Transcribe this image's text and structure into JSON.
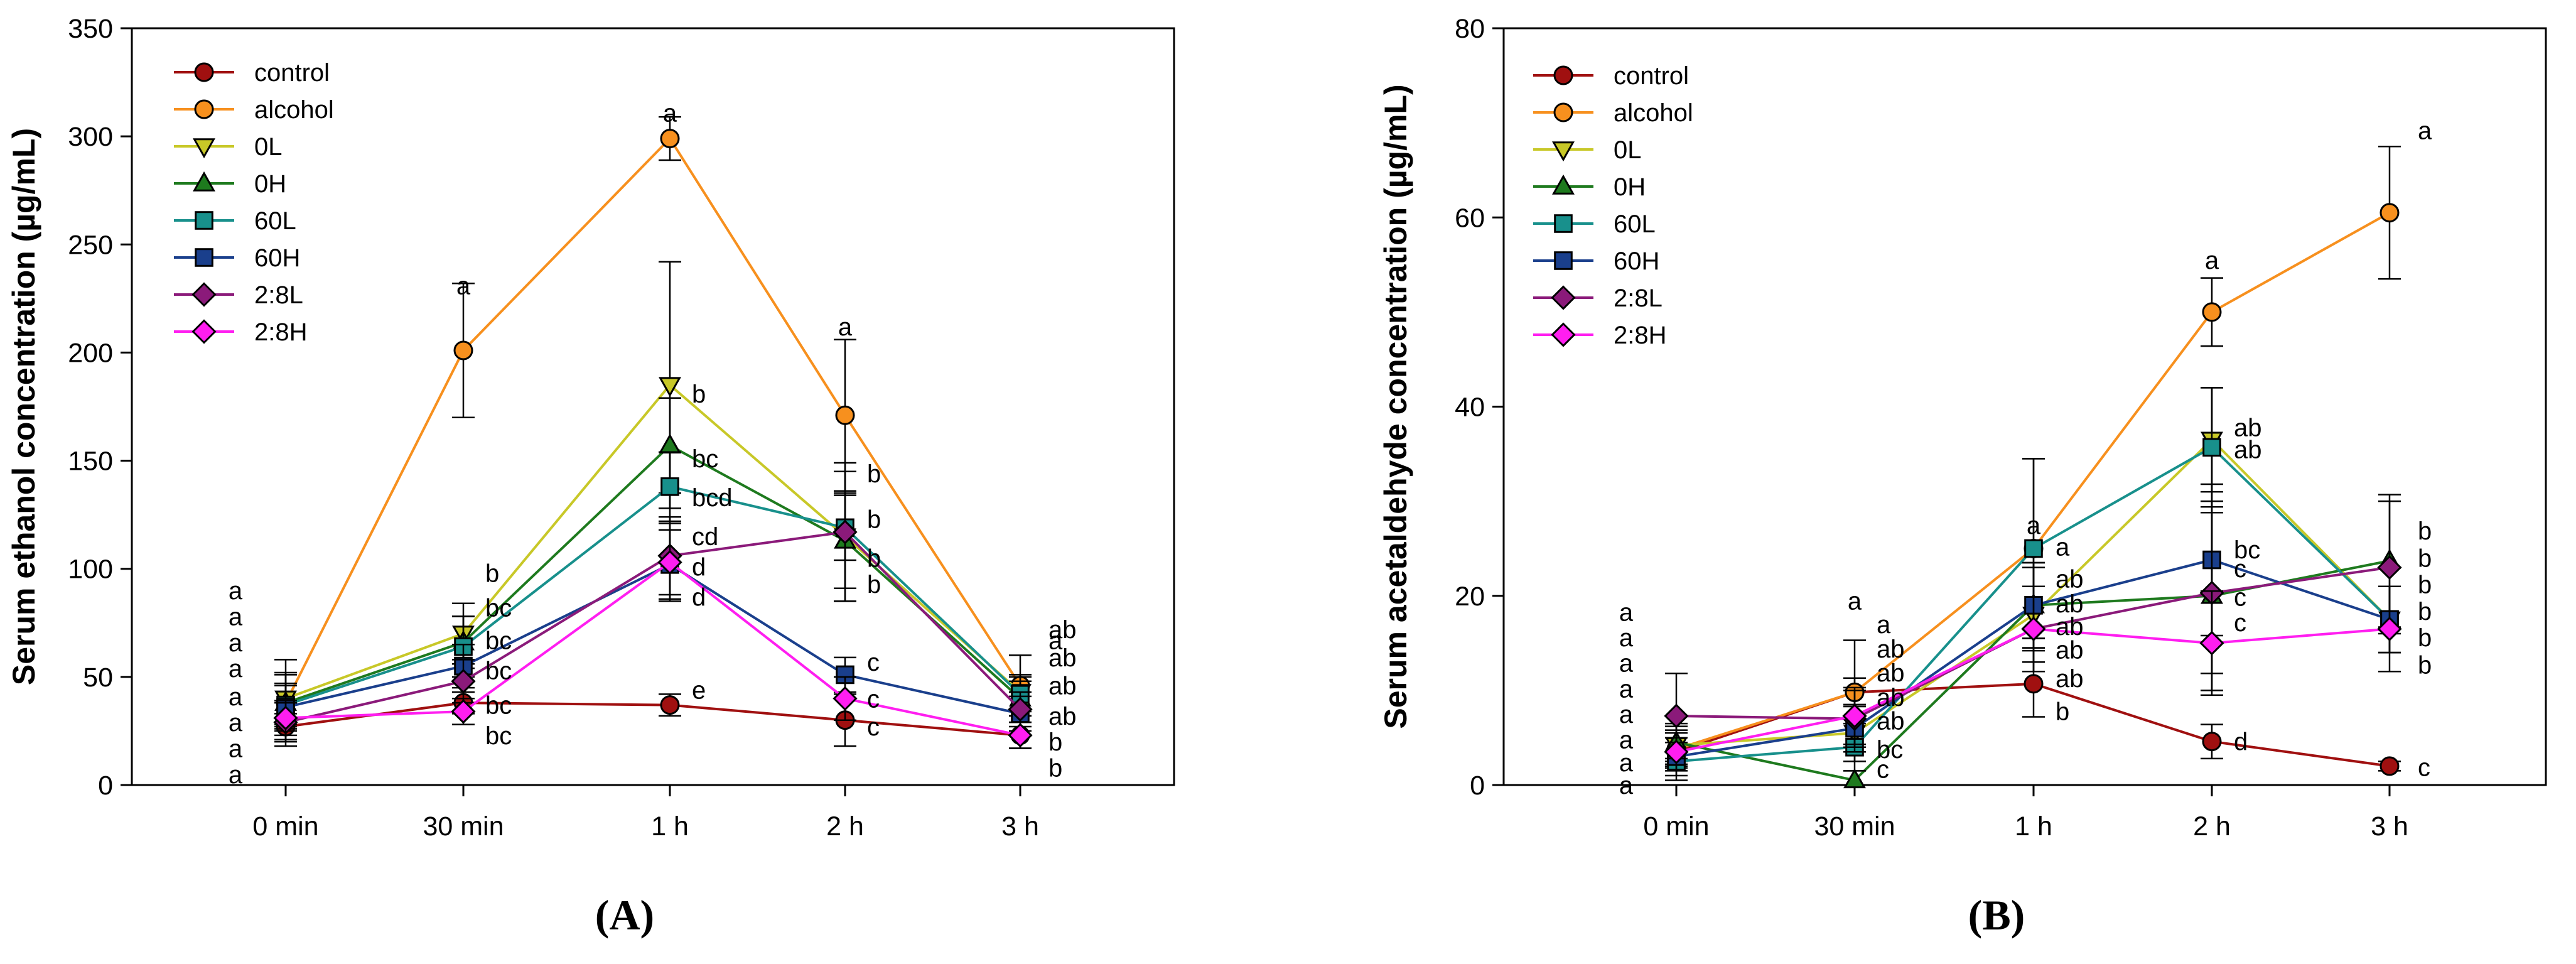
{
  "chart_data": [
    {
      "type": "line",
      "panel_label": "(A)",
      "title": "",
      "xlabel": "",
      "ylabel": "Serum ethanol concentration (µg/mL)",
      "categories": [
        "0 min",
        "30 min",
        "1 h",
        "2 h",
        "3 h"
      ],
      "ylim": [
        0,
        350
      ],
      "yticks": [
        "0",
        "50",
        "100",
        "150",
        "200",
        "250",
        "300",
        "350"
      ],
      "legend_position": "top-left",
      "series": [
        {
          "name": "control",
          "color": "#a01010",
          "marker": "circle",
          "values": [
            27,
            38,
            37,
            30,
            23
          ],
          "errors": [
            6,
            5,
            5,
            12,
            6
          ]
        },
        {
          "name": "alcohol",
          "color": "#f7901e",
          "marker": "circle",
          "values": [
            38,
            201,
            299,
            171,
            46
          ],
          "errors": [
            20,
            31,
            10,
            35,
            14
          ]
        },
        {
          "name": "0L",
          "color": "#c8c828",
          "marker": "triangle-down",
          "values": [
            40,
            70,
            185,
            115,
            43
          ],
          "errors": [
            12,
            14,
            57,
            30,
            8
          ]
        },
        {
          "name": "0H",
          "color": "#1e7a1e",
          "marker": "triangle-up",
          "values": [
            38,
            66,
            157,
            113,
            40
          ],
          "errors": [
            13,
            12,
            22,
            22,
            8
          ]
        },
        {
          "name": "60L",
          "color": "#18908c",
          "marker": "square",
          "values": [
            37,
            64,
            138,
            119,
            42
          ],
          "errors": [
            10,
            14,
            16,
            15,
            8
          ]
        },
        {
          "name": "60H",
          "color": "#1a3f8c",
          "marker": "square",
          "values": [
            36,
            55,
            102,
            51,
            33
          ],
          "errors": [
            10,
            10,
            16,
            8,
            8
          ]
        },
        {
          "name": "2:8L",
          "color": "#8b1a7a",
          "marker": "diamond",
          "values": [
            29,
            48,
            106,
            117,
            35
          ],
          "errors": [
            9,
            10,
            18,
            32,
            8
          ]
        },
        {
          "name": "2:8H",
          "color": "#ff1ef0",
          "marker": "diamond",
          "values": [
            31,
            34,
            103,
            40,
            23
          ],
          "errors": [
            8,
            6,
            18,
            10,
            6
          ]
        }
      ],
      "significance": [
        {
          "x": "0 min",
          "items": [
            {
              "label": "a",
              "y": 90
            },
            {
              "label": "a",
              "y": 78
            },
            {
              "label": "a",
              "y": 66
            },
            {
              "label": "a",
              "y": 54
            },
            {
              "label": "a",
              "y": 41
            },
            {
              "label": "a",
              "y": 29
            },
            {
              "label": "a",
              "y": 17
            },
            {
              "label": "a",
              "y": 5
            }
          ]
        },
        {
          "x": "30 min",
          "items": [
            {
              "label": "a",
              "y": 231
            },
            {
              "label": "b",
              "y": 98
            },
            {
              "label": "bc",
              "y": 82
            },
            {
              "label": "bc",
              "y": 67
            },
            {
              "label": "bc",
              "y": 53
            },
            {
              "label": "bc",
              "y": 37
            },
            {
              "label": "bc",
              "y": 23
            }
          ]
        },
        {
          "x": "1 h",
          "items": [
            {
              "label": "a",
              "y": 311
            },
            {
              "label": "b",
              "y": 181
            },
            {
              "label": "bc",
              "y": 151
            },
            {
              "label": "bcd",
              "y": 133
            },
            {
              "label": "cd",
              "y": 115
            },
            {
              "label": "d",
              "y": 101
            },
            {
              "label": "d",
              "y": 87
            },
            {
              "label": "e",
              "y": 44
            }
          ]
        },
        {
          "x": "2 h",
          "items": [
            {
              "label": "a",
              "y": 212
            },
            {
              "label": "b",
              "y": 144
            },
            {
              "label": "b",
              "y": 123
            },
            {
              "label": "b",
              "y": 105
            },
            {
              "label": "b",
              "y": 93
            },
            {
              "label": "c",
              "y": 57
            },
            {
              "label": "c",
              "y": 40
            },
            {
              "label": "c",
              "y": 27
            }
          ]
        },
        {
          "x": "3 h",
          "items": [
            {
              "label": "a",
              "y": 67
            },
            {
              "label": "ab",
              "y": 72
            },
            {
              "label": "ab",
              "y": 59
            },
            {
              "label": "ab",
              "y": 46
            },
            {
              "label": "ab",
              "y": 32
            },
            {
              "label": "b",
              "y": 20
            },
            {
              "label": "b",
              "y": 8
            }
          ]
        }
      ]
    },
    {
      "type": "line",
      "panel_label": "(B)",
      "title": "",
      "xlabel": "",
      "ylabel": "Serum acetaldehyde concentration (µg/mL)",
      "categories": [
        "0 min",
        "30 min",
        "1 h",
        "2 h",
        "3 h"
      ],
      "ylim": [
        0,
        80
      ],
      "yticks": [
        "0",
        "20",
        "40",
        "60",
        "80"
      ],
      "legend_position": "top-left",
      "series": [
        {
          "name": "control",
          "color": "#a01010",
          "marker": "circle",
          "values": [
            3.5,
            9.8,
            10.7,
            4.6,
            2.0
          ],
          "errors": [
            1.5,
            1.5,
            3.5,
            1.8,
            0.5
          ]
        },
        {
          "name": "alcohol",
          "color": "#f7901e",
          "marker": "circle",
          "values": [
            3.8,
            9.8,
            25.0,
            50.0,
            60.5
          ],
          "errors": [
            2.0,
            5.5,
            9.5,
            3.6,
            7.0
          ]
        },
        {
          "name": "0L",
          "color": "#c8c828",
          "marker": "triangle-down",
          "values": [
            4.2,
            5.5,
            18.0,
            36.5,
            17.5
          ],
          "errors": [
            2.0,
            3.0,
            5.0,
            5.5,
            3.5
          ]
        },
        {
          "name": "0H",
          "color": "#1e7a1e",
          "marker": "triangle-up",
          "values": [
            4.5,
            0.5,
            19.0,
            20.0,
            23.7
          ],
          "errors": [
            2.0,
            1.0,
            4.5,
            10.0,
            7.0
          ]
        },
        {
          "name": "60L",
          "color": "#18908c",
          "marker": "square",
          "values": [
            2.5,
            4.0,
            25.0,
            35.7,
            17.5
          ],
          "errors": [
            2.0,
            2.5,
            9.5,
            6.3,
            3.5
          ]
        },
        {
          "name": "60H",
          "color": "#1a3f8c",
          "marker": "square",
          "values": [
            3.0,
            6.0,
            19.0,
            23.8,
            17.5
          ],
          "errors": [
            2.0,
            2.5,
            4.5,
            8.0,
            3.5
          ]
        },
        {
          "name": "2:8L",
          "color": "#8b1a7a",
          "marker": "diamond",
          "values": [
            7.3,
            7.0,
            16.5,
            20.3,
            23.0
          ],
          "errors": [
            4.5,
            3.0,
            4.5,
            8.5,
            7.0
          ]
        },
        {
          "name": "2:8H",
          "color": "#ff1ef0",
          "marker": "diamond",
          "values": [
            3.5,
            7.3,
            16.5,
            15.0,
            16.5
          ],
          "errors": [
            2.0,
            3.0,
            4.5,
            5.5,
            4.5
          ]
        }
      ],
      "significance": [
        {
          "x": "0 min",
          "items": [
            {
              "label": "a",
              "y": 18.3
            },
            {
              "label": "a",
              "y": 15.6
            },
            {
              "label": "a",
              "y": 12.9
            },
            {
              "label": "a",
              "y": 10.2
            },
            {
              "label": "a",
              "y": 7.5
            },
            {
              "label": "a",
              "y": 4.8
            },
            {
              "label": "a",
              "y": 2.4
            },
            {
              "label": "a",
              "y": 0
            }
          ]
        },
        {
          "x": "30 min",
          "items": [
            {
              "label": "a",
              "y": 19.5
            },
            {
              "label": "a",
              "y": 17.0
            },
            {
              "label": "ab",
              "y": 14.4
            },
            {
              "label": "ab",
              "y": 11.9
            },
            {
              "label": "ab",
              "y": 9.3
            },
            {
              "label": "ab",
              "y": 6.8
            },
            {
              "label": "bc",
              "y": 3.8
            },
            {
              "label": "c",
              "y": 1.7
            }
          ]
        },
        {
          "x": "1 h",
          "items": [
            {
              "label": "a",
              "y": 27.5
            },
            {
              "label": "a",
              "y": 25.2
            },
            {
              "label": "ab",
              "y": 21.8
            },
            {
              "label": "ab",
              "y": 19.2
            },
            {
              "label": "ab",
              "y": 16.8
            },
            {
              "label": "ab",
              "y": 14.3
            },
            {
              "label": "ab",
              "y": 11.3
            },
            {
              "label": "b",
              "y": 7.8
            }
          ]
        },
        {
          "x": "2 h",
          "items": [
            {
              "label": "a",
              "y": 55.5
            },
            {
              "label": "ab",
              "y": 37.8
            },
            {
              "label": "ab",
              "y": 35.5
            },
            {
              "label": "bc",
              "y": 24.9
            },
            {
              "label": "c",
              "y": 22.9
            },
            {
              "label": "c",
              "y": 19.9
            },
            {
              "label": "c",
              "y": 17.2
            },
            {
              "label": "d",
              "y": 4.6
            }
          ]
        },
        {
          "x": "3 h",
          "items": [
            {
              "label": "a",
              "y": 69.2
            },
            {
              "label": "b",
              "y": 26.9
            },
            {
              "label": "b",
              "y": 24.0
            },
            {
              "label": "b",
              "y": 21.2
            },
            {
              "label": "b",
              "y": 18.4
            },
            {
              "label": "b",
              "y": 15.6
            },
            {
              "label": "b",
              "y": 12.7
            },
            {
              "label": "c",
              "y": 1.9
            }
          ]
        }
      ]
    }
  ]
}
